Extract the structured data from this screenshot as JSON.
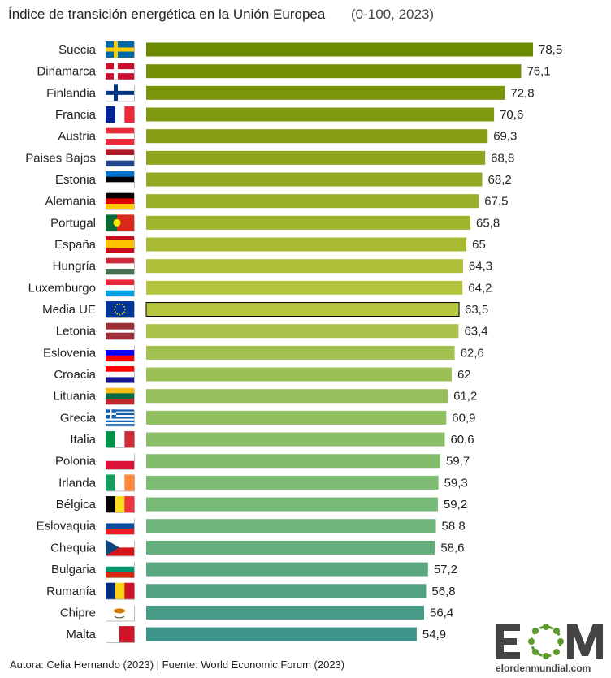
{
  "chart_data": {
    "type": "bar",
    "orientation": "horizontal",
    "title": "Índice de transición energética en la Unión Europea",
    "subtitle": "(0-100, 2023)",
    "categories": [
      "Suecia",
      "Dinamarca",
      "Finlandia",
      "Francia",
      "Austria",
      "Paises Bajos",
      "Estonia",
      "Alemania",
      "Portugal",
      "España",
      "Hungría",
      "Luxemburgo",
      "Media UE",
      "Letonia",
      "Eslovenia",
      "Croacia",
      "Lituania",
      "Grecia",
      "Italia",
      "Polonia",
      "Irlanda",
      "Bélgica",
      "Eslovaquia",
      "Chequia",
      "Bulgaria",
      "Rumanía",
      "Chipre",
      "Malta"
    ],
    "values": [
      78.5,
      76.1,
      72.8,
      70.6,
      69.3,
      68.8,
      68.2,
      67.5,
      65.8,
      65,
      64.3,
      64.2,
      63.5,
      63.4,
      62.6,
      62,
      61.2,
      60.9,
      60.6,
      59.7,
      59.3,
      59.2,
      58.8,
      58.6,
      57.2,
      56.8,
      56.4,
      54.9
    ],
    "value_labels": [
      "78,5",
      "76,1",
      "72,8",
      "70,6",
      "69,3",
      "68,8",
      "68,2",
      "67,5",
      "65,8",
      "65",
      "64,3",
      "64,2",
      "63,5",
      "63,4",
      "62,6",
      "62",
      "61,2",
      "60,9",
      "60,6",
      "59,7",
      "59,3",
      "59,2",
      "58,8",
      "58,6",
      "57,2",
      "56,8",
      "56,4",
      "54,9"
    ],
    "xlim": [
      0,
      100
    ],
    "grid": false,
    "highlight": "Media UE",
    "colors": {
      "top": "#6b8a00",
      "mid": "#b5c43f",
      "green": "#78ba78",
      "bottom": "#3d9488",
      "highlight_border": "#000000"
    }
  },
  "footer": "Autora: Celia Hernando (2023) | Fuente: World Economic Forum (2023)",
  "logo": {
    "text": "EOM",
    "url_text": "elordenmundial.com"
  }
}
